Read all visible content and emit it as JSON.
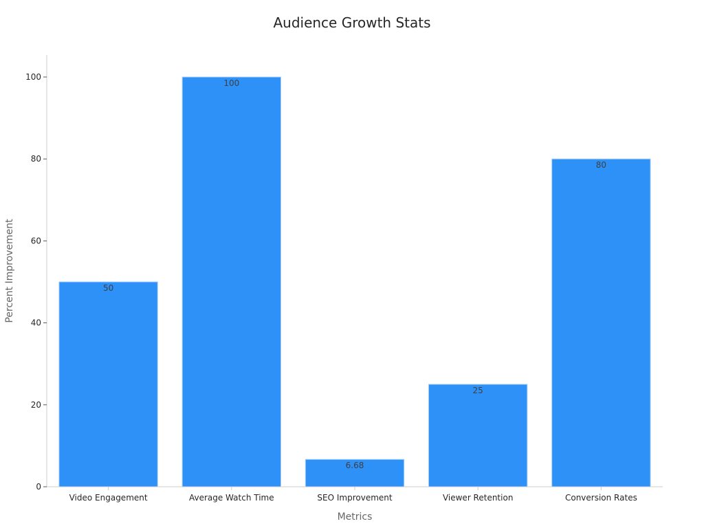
{
  "chart_data": {
    "type": "bar",
    "title": "Audience Growth Stats",
    "xlabel": "Metrics",
    "ylabel": "Percent Improvement",
    "categories": [
      "Video Engagement",
      "Average Watch Time",
      "SEO Improvement",
      "Viewer Retention",
      "Conversion Rates"
    ],
    "values": [
      50,
      100,
      6.68,
      25,
      80
    ],
    "value_labels": [
      "50",
      "100",
      "6.68",
      "25",
      "80"
    ],
    "ylim": [
      0,
      105
    ],
    "yticks": [
      0,
      20,
      40,
      60,
      80,
      100
    ],
    "grid": false,
    "bar_color": "#2E91F8",
    "bar_edge_color": "#A8CFF7",
    "axis_color": "#CCCCCC"
  }
}
